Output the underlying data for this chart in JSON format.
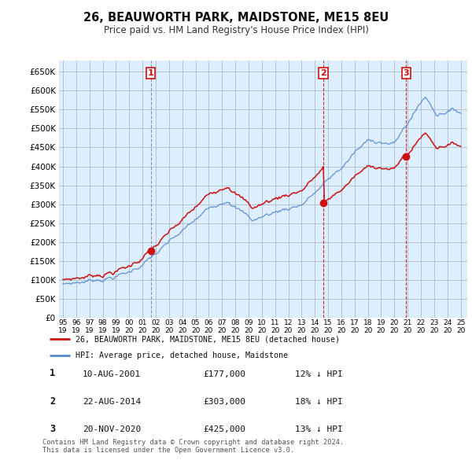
{
  "title": "26, BEAUWORTH PARK, MAIDSTONE, ME15 8EU",
  "subtitle": "Price paid vs. HM Land Registry's House Price Index (HPI)",
  "ylim": [
    0,
    680000
  ],
  "yticks": [
    0,
    50000,
    100000,
    150000,
    200000,
    250000,
    300000,
    350000,
    400000,
    450000,
    500000,
    550000,
    600000,
    650000
  ],
  "bg_color": "#ffffff",
  "plot_bg_color": "#ddeeff",
  "grid_color": "#aabbcc",
  "line_color_hpi": "#5588cc",
  "line_color_price": "#cc1111",
  "purchases": [
    {
      "date_num": 2001.62,
      "price": 177000,
      "label": "1",
      "vline_color": "#888888",
      "vline_style": "--"
    },
    {
      "date_num": 2014.64,
      "price": 303000,
      "label": "2",
      "vline_color": "#cc1111",
      "vline_style": "--"
    },
    {
      "date_num": 2020.89,
      "price": 425000,
      "label": "3",
      "vline_color": "#cc1111",
      "vline_style": "--"
    }
  ],
  "legend_price_label": "26, BEAUWORTH PARK, MAIDSTONE, ME15 8EU (detached house)",
  "legend_hpi_label": "HPI: Average price, detached house, Maidstone",
  "table_rows": [
    {
      "num": "1",
      "date": "10-AUG-2001",
      "price": "£177,000",
      "hpi": "12% ↓ HPI"
    },
    {
      "num": "2",
      "date": "22-AUG-2014",
      "price": "£303,000",
      "hpi": "18% ↓ HPI"
    },
    {
      "num": "3",
      "date": "20-NOV-2020",
      "price": "£425,000",
      "hpi": "13% ↓ HPI"
    }
  ],
  "footnote": "Contains HM Land Registry data © Crown copyright and database right 2024.\nThis data is licensed under the Open Government Licence v3.0.",
  "xtick_years": [
    1995,
    1996,
    1997,
    1998,
    1999,
    2000,
    2001,
    2002,
    2003,
    2004,
    2005,
    2006,
    2007,
    2008,
    2009,
    2010,
    2011,
    2012,
    2013,
    2014,
    2015,
    2016,
    2017,
    2018,
    2019,
    2020,
    2021,
    2022,
    2023,
    2024,
    2025
  ]
}
